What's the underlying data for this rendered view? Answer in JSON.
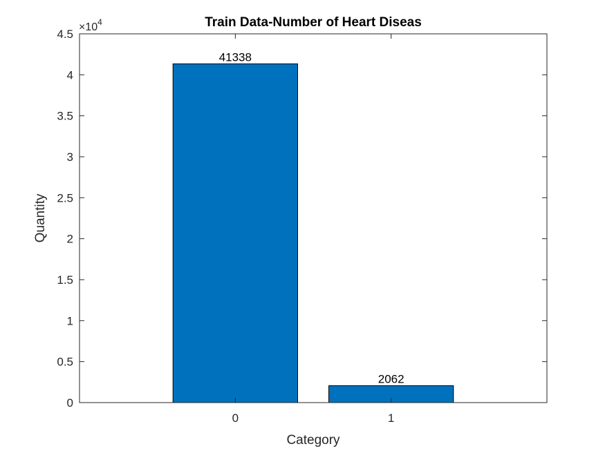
{
  "chart_data": {
    "type": "bar",
    "title": "Train Data-Number of Heart Diseas",
    "xlabel": "Category",
    "ylabel": "Quantity",
    "categories": [
      "0",
      "1"
    ],
    "values": [
      41338,
      2062
    ],
    "data_labels": [
      "41338",
      "2062"
    ],
    "ylim": [
      0,
      45000
    ],
    "xlim": [
      -1,
      2
    ],
    "y_tick_labels": [
      "0",
      "0.5",
      "1",
      "1.5",
      "2",
      "2.5",
      "3",
      "3.5",
      "4",
      "4.5"
    ],
    "y_exponent": {
      "base": "×10",
      "power": "4"
    },
    "bar_color": "#0072BD",
    "bar_edge_color": "#000000",
    "grid": false,
    "legend": "none"
  }
}
